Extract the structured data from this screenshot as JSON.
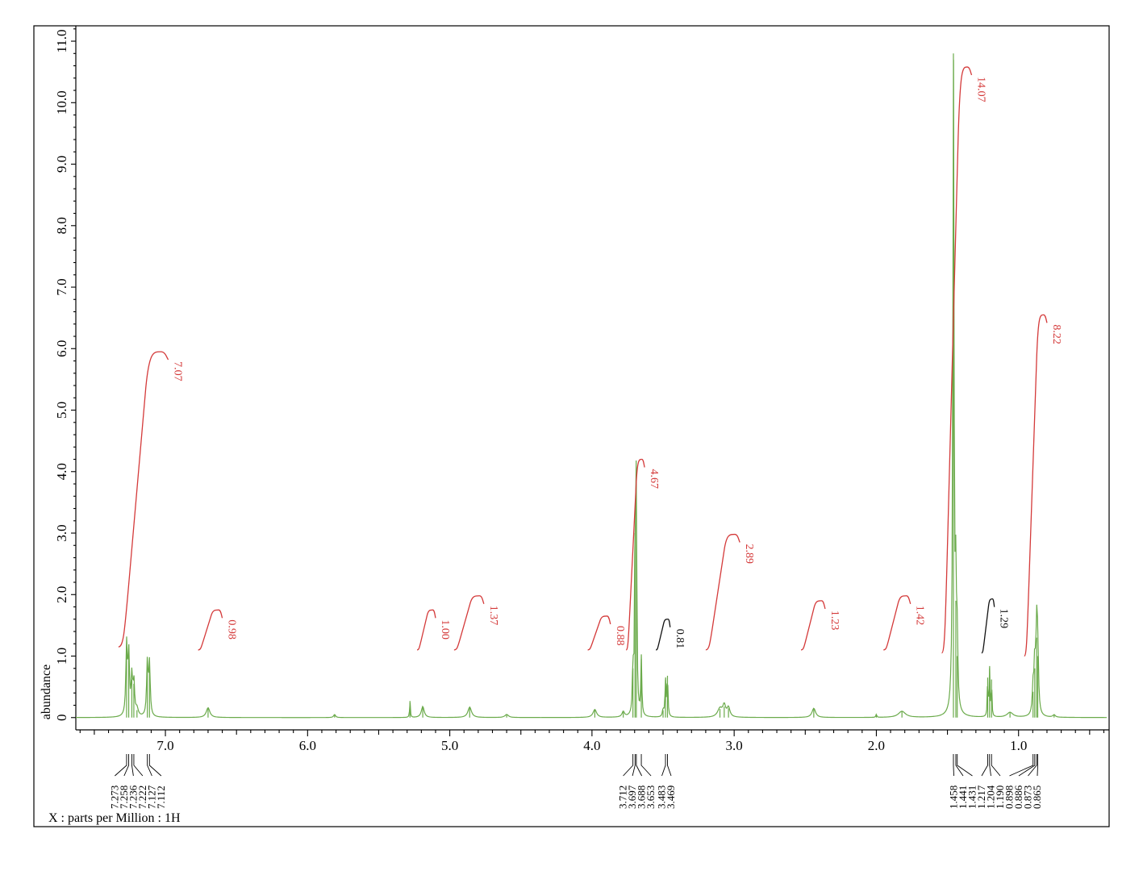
{
  "chart_data": {
    "type": "line",
    "xlabel": "X : parts per Million : 1H",
    "ylabel": "abundance",
    "xlim": [
      7.63,
      0.38
    ],
    "ylim": [
      -0.2,
      11.25
    ],
    "x_ticks": [
      "7.0",
      "6.0",
      "5.0",
      "4.0",
      "3.0",
      "2.0",
      "1.0"
    ],
    "y_ticks": [
      "0",
      "1.0",
      "2.0",
      "3.0",
      "4.0",
      "5.0",
      "6.0",
      "7.0",
      "8.0",
      "9.0",
      "10.0",
      "11.0"
    ],
    "x_tick_values": [
      7,
      6,
      5,
      4,
      3,
      2,
      1
    ],
    "y_tick_values": [
      0,
      1,
      2,
      3,
      4,
      5,
      6,
      7,
      8,
      9,
      10,
      11
    ],
    "grid": false,
    "peaks": [
      {
        "ppm": 7.273,
        "height": 1.15,
        "w": 0.006
      },
      {
        "ppm": 7.258,
        "height": 1.0,
        "w": 0.006
      },
      {
        "ppm": 7.236,
        "height": 0.62,
        "w": 0.006
      },
      {
        "ppm": 7.222,
        "height": 0.55,
        "w": 0.006
      },
      {
        "ppm": 7.2,
        "height": 0.12,
        "w": 0.01
      },
      {
        "ppm": 7.127,
        "height": 0.88,
        "w": 0.006
      },
      {
        "ppm": 7.112,
        "height": 0.85,
        "w": 0.006
      },
      {
        "ppm": 6.7,
        "height": 0.16,
        "w": 0.015
      },
      {
        "ppm": 5.81,
        "height": 0.05,
        "w": 0.008
      },
      {
        "ppm": 5.28,
        "height": 0.27,
        "w": 0.003
      },
      {
        "ppm": 5.19,
        "height": 0.18,
        "w": 0.012
      },
      {
        "ppm": 4.86,
        "height": 0.17,
        "w": 0.015
      },
      {
        "ppm": 4.6,
        "height": 0.05,
        "w": 0.015
      },
      {
        "ppm": 3.98,
        "height": 0.13,
        "w": 0.015
      },
      {
        "ppm": 3.78,
        "height": 0.09,
        "w": 0.01
      },
      {
        "ppm": 3.712,
        "height": 0.8,
        "w": 0.004
      },
      {
        "ppm": 3.697,
        "height": 3.0,
        "w": 0.004
      },
      {
        "ppm": 3.688,
        "height": 3.8,
        "w": 0.004
      },
      {
        "ppm": 3.653,
        "height": 0.95,
        "w": 0.004
      },
      {
        "ppm": 3.483,
        "height": 0.62,
        "w": 0.004
      },
      {
        "ppm": 3.469,
        "height": 0.68,
        "w": 0.004
      },
      {
        "ppm": 3.5,
        "height": 0.12,
        "w": 0.005
      },
      {
        "ppm": 3.1,
        "height": 0.14,
        "w": 0.02
      },
      {
        "ppm": 3.07,
        "height": 0.18,
        "w": 0.012
      },
      {
        "ppm": 3.04,
        "height": 0.15,
        "w": 0.012
      },
      {
        "ppm": 2.44,
        "height": 0.15,
        "w": 0.015
      },
      {
        "ppm": 2.0,
        "height": 0.05,
        "w": 0.004
      },
      {
        "ppm": 1.82,
        "height": 0.1,
        "w": 0.03
      },
      {
        "ppm": 1.458,
        "height": 10.8,
        "w": 0.005
      },
      {
        "ppm": 1.441,
        "height": 1.9,
        "w": 0.005
      },
      {
        "ppm": 1.431,
        "height": 1.0,
        "w": 0.005
      },
      {
        "ppm": 1.217,
        "height": 0.65,
        "w": 0.003
      },
      {
        "ppm": 1.204,
        "height": 0.8,
        "w": 0.003
      },
      {
        "ppm": 1.19,
        "height": 0.62,
        "w": 0.003
      },
      {
        "ppm": 1.06,
        "height": 0.08,
        "w": 0.025
      },
      {
        "ppm": 0.898,
        "height": 0.42,
        "w": 0.006
      },
      {
        "ppm": 0.886,
        "height": 0.8,
        "w": 0.006
      },
      {
        "ppm": 0.873,
        "height": 1.3,
        "w": 0.006
      },
      {
        "ppm": 0.865,
        "height": 1.0,
        "w": 0.006
      },
      {
        "ppm": 0.75,
        "height": 0.04,
        "w": 0.01
      }
    ],
    "integrals": [
      {
        "label": "7.07",
        "from": 7.33,
        "to": 6.98,
        "base": 1.15,
        "top": 5.95,
        "color": "red"
      },
      {
        "label": "0.98",
        "from": 6.77,
        "to": 6.6,
        "base": 1.1,
        "top": 1.75,
        "color": "red"
      },
      {
        "label": "1.00",
        "from": 5.23,
        "to": 5.1,
        "base": 1.1,
        "top": 1.75,
        "color": "red"
      },
      {
        "label": "1.37",
        "from": 4.97,
        "to": 4.76,
        "base": 1.1,
        "top": 1.98,
        "color": "red"
      },
      {
        "label": "0.88",
        "from": 4.03,
        "to": 3.87,
        "base": 1.1,
        "top": 1.65,
        "color": "red"
      },
      {
        "label": "4.67",
        "from": 3.76,
        "to": 3.63,
        "base": 1.1,
        "top": 4.2,
        "color": "red"
      },
      {
        "label": "0.81",
        "from": 3.55,
        "to": 3.45,
        "base": 1.1,
        "top": 1.6,
        "color": "black"
      },
      {
        "label": "2.89",
        "from": 3.2,
        "to": 2.96,
        "base": 1.1,
        "top": 2.98,
        "color": "red"
      },
      {
        "label": "1.23",
        "from": 2.53,
        "to": 2.36,
        "base": 1.1,
        "top": 1.9,
        "color": "red"
      },
      {
        "label": "1.42",
        "from": 1.95,
        "to": 1.76,
        "base": 1.1,
        "top": 1.98,
        "color": "red"
      },
      {
        "label": "14.07",
        "from": 1.54,
        "to": 1.33,
        "base": 1.05,
        "top": 10.58,
        "color": "red"
      },
      {
        "label": "1.29",
        "from": 1.26,
        "to": 1.17,
        "base": 1.05,
        "top": 1.93,
        "color": "black"
      },
      {
        "label": "8.22",
        "from": 0.96,
        "to": 0.8,
        "base": 1.0,
        "top": 6.55,
        "color": "red"
      }
    ],
    "peak_groups": [
      {
        "labels": [
          "7.273",
          "7.258",
          "7.236",
          "7.222",
          "7.127",
          "7.112"
        ]
      },
      {
        "labels": [
          "3.712",
          "3.697",
          "3.688",
          "3.653"
        ]
      },
      {
        "labels": [
          "3.483",
          "3.469"
        ]
      },
      {
        "labels": [
          "1.458",
          "1.441",
          "1.431",
          "1.217",
          "1.204",
          "1.190",
          "0.898",
          "0.886",
          "0.873",
          "0.865"
        ]
      }
    ],
    "colors": {
      "spectrum": "#6aaa4a",
      "integral": "#d43a3a",
      "integral_alt": "#111111"
    }
  }
}
